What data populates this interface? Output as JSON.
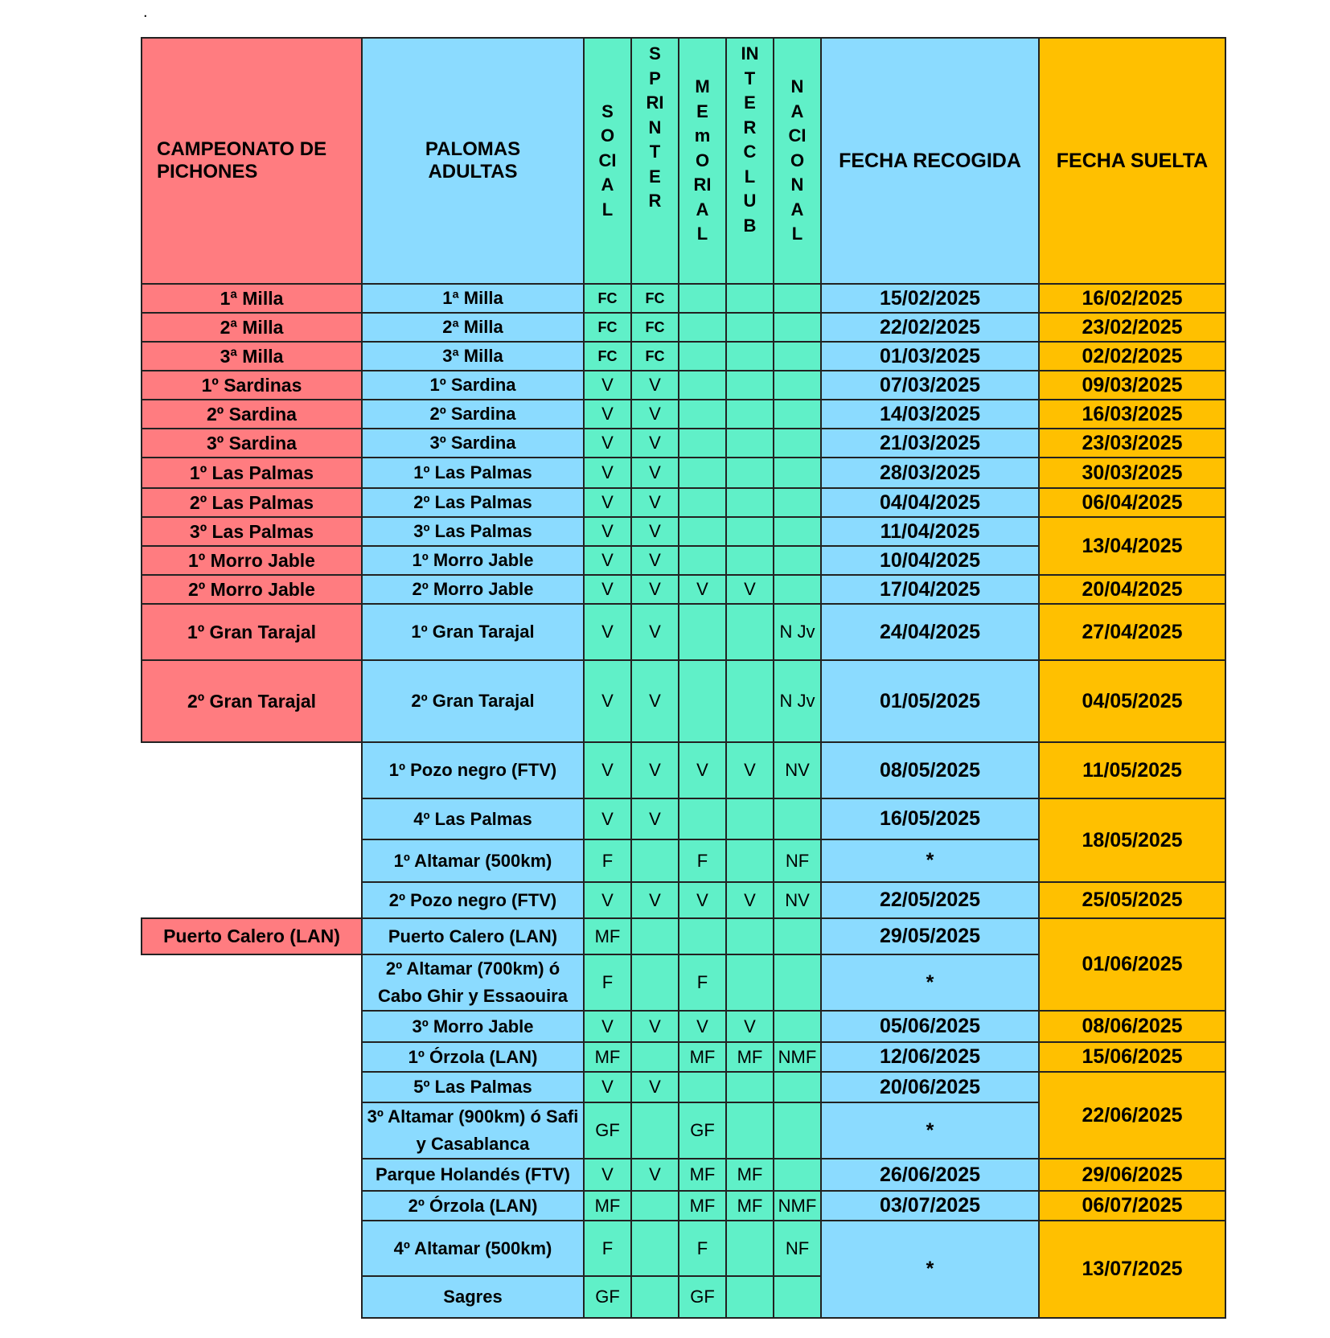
{
  "note": ".",
  "headers": {
    "pichones": "CAMPEONATO DE PICHONES",
    "adultas": "PALOMAS ADULTAS",
    "social": "SOCIAL",
    "sprinter": "SPRINTER",
    "memorial": "MEmORIAL",
    "interclub": "INTERCLUB",
    "nacional": "NACIONAL",
    "recogida": "FECHA RECOGIDA",
    "suelta": "FECHA SUELTA"
  },
  "colors": {
    "pichones": "#FF7C80",
    "adultas": "#8BDBFF",
    "categories": "#60F0C8",
    "suelta": "#FFC000"
  },
  "rows": [
    {
      "pichones": "1ª Milla",
      "adultas": "1ª Milla",
      "social": "FC",
      "sprinter": "FC",
      "memorial": "",
      "interclub": "",
      "nacional": "",
      "recogida": "15/02/2025",
      "suelta": "16/02/2025"
    },
    {
      "pichones": "2ª Milla",
      "adultas": "2ª Milla",
      "social": "FC",
      "sprinter": "FC",
      "memorial": "",
      "interclub": "",
      "nacional": "",
      "recogida": "22/02/2025",
      "suelta": "23/02/2025"
    },
    {
      "pichones": "3ª Milla",
      "adultas": "3ª Milla",
      "social": "FC",
      "sprinter": "FC",
      "memorial": "",
      "interclub": "",
      "nacional": "",
      "recogida": "01/03/2025",
      "suelta": "02/02/2025"
    },
    {
      "pichones": "1º Sardinas",
      "adultas": "1º Sardina",
      "social": "V",
      "sprinter": "V",
      "memorial": "",
      "interclub": "",
      "nacional": "",
      "recogida": "07/03/2025",
      "suelta": "09/03/2025"
    },
    {
      "pichones": "2º Sardina",
      "adultas": "2º Sardina",
      "social": "V",
      "sprinter": "V",
      "memorial": "",
      "interclub": "",
      "nacional": "",
      "recogida": "14/03/2025",
      "suelta": "16/03/2025"
    },
    {
      "pichones": "3º Sardina",
      "adultas": "3º Sardina",
      "social": "V",
      "sprinter": "V",
      "memorial": "",
      "interclub": "",
      "nacional": "",
      "recogida": "21/03/2025",
      "suelta": "23/03/2025"
    },
    {
      "pichones": "1º Las Palmas",
      "adultas": "1º Las Palmas",
      "social": "V",
      "sprinter": "V",
      "memorial": "",
      "interclub": "",
      "nacional": "",
      "recogida": "28/03/2025",
      "suelta": "30/03/2025"
    },
    {
      "pichones": "2º Las Palmas",
      "adultas": "2º Las Palmas",
      "social": "V",
      "sprinter": "V",
      "memorial": "",
      "interclub": "",
      "nacional": "",
      "recogida": "04/04/2025",
      "suelta": "06/04/2025"
    },
    {
      "pichones": "3º Las Palmas",
      "adultas": "3º Las Palmas",
      "social": "V",
      "sprinter": "V",
      "memorial": "",
      "interclub": "",
      "nacional": "",
      "recogida": "11/04/2025",
      "suelta": "13/04/2025"
    },
    {
      "pichones": "1º Morro Jable",
      "adultas": "1º Morro Jable",
      "social": "V",
      "sprinter": "V",
      "memorial": "",
      "interclub": "",
      "nacional": "",
      "recogida": "10/04/2025",
      "suelta": ""
    },
    {
      "pichones": "2º Morro Jable",
      "adultas": "2º Morro Jable",
      "social": "V",
      "sprinter": "V",
      "memorial": "V",
      "interclub": "V",
      "nacional": "",
      "recogida": "17/04/2025",
      "suelta": "20/04/2025"
    },
    {
      "pichones": "1º Gran Tarajal",
      "adultas": "1º Gran Tarajal",
      "social": "V",
      "sprinter": "V",
      "memorial": "",
      "interclub": "",
      "nacional": "N Jv",
      "recogida": "24/04/2025",
      "suelta": "27/04/2025"
    },
    {
      "pichones": "2º Gran Tarajal",
      "adultas": "2º Gran Tarajal",
      "social": "V",
      "sprinter": "V",
      "memorial": "",
      "interclub": "",
      "nacional": "N Jv",
      "recogida": "01/05/2025",
      "suelta": "04/05/2025"
    },
    {
      "pichones": "",
      "adultas": "1º Pozo negro (FTV)",
      "social": "V",
      "sprinter": "V",
      "memorial": "V",
      "interclub": "V",
      "nacional": "NV",
      "recogida": "08/05/2025",
      "suelta": "11/05/2025"
    },
    {
      "pichones": "",
      "adultas": "4º Las Palmas",
      "social": "V",
      "sprinter": "V",
      "memorial": "",
      "interclub": "",
      "nacional": "",
      "recogida": "16/05/2025",
      "suelta": "18/05/2025"
    },
    {
      "pichones": "",
      "adultas": "1º Altamar (500km)",
      "social": "F",
      "sprinter": "",
      "memorial": "F",
      "interclub": "",
      "nacional": "NF",
      "recogida": "*",
      "suelta": ""
    },
    {
      "pichones": "",
      "adultas": "2º Pozo negro (FTV)",
      "social": "V",
      "sprinter": "V",
      "memorial": "V",
      "interclub": "V",
      "nacional": "NV",
      "recogida": "22/05/2025",
      "suelta": "25/05/2025"
    },
    {
      "pichones": "Puerto Calero (LAN)",
      "adultas": "Puerto Calero (LAN)",
      "social": "MF",
      "sprinter": "",
      "memorial": "",
      "interclub": "",
      "nacional": "",
      "recogida": "29/05/2025",
      "suelta": "01/06/2025"
    },
    {
      "pichones": "",
      "adultas": "2º Altamar (700km) ó Cabo Ghir y Essaouira",
      "social": "F",
      "sprinter": "",
      "memorial": "F",
      "interclub": "",
      "nacional": "",
      "recogida": "*",
      "suelta": ""
    },
    {
      "pichones": "",
      "adultas": "3º Morro Jable",
      "social": "V",
      "sprinter": "V",
      "memorial": "V",
      "interclub": "V",
      "nacional": "",
      "recogida": "05/06/2025",
      "suelta": "08/06/2025"
    },
    {
      "pichones": "",
      "adultas": "1º Órzola (LAN)",
      "social": "MF",
      "sprinter": "",
      "memorial": "MF",
      "interclub": "MF",
      "nacional": "NMF",
      "recogida": "12/06/2025",
      "suelta": "15/06/2025"
    },
    {
      "pichones": "",
      "adultas": "5º Las Palmas",
      "social": "V",
      "sprinter": "V",
      "memorial": "",
      "interclub": "",
      "nacional": "",
      "recogida": "20/06/2025",
      "suelta": "22/06/2025"
    },
    {
      "pichones": "",
      "adultas": "3º Altamar (900km) ó Safi y Casablanca",
      "social": "GF",
      "sprinter": "",
      "memorial": "GF",
      "interclub": "",
      "nacional": "",
      "recogida": "*",
      "suelta": ""
    },
    {
      "pichones": "",
      "adultas": "Parque Holandés (FTV)",
      "social": "V",
      "sprinter": "V",
      "memorial": "MF",
      "interclub": "MF",
      "nacional": "",
      "recogida": "26/06/2025",
      "suelta": "29/06/2025"
    },
    {
      "pichones": "",
      "adultas": "2º Órzola (LAN)",
      "social": "MF",
      "sprinter": "",
      "memorial": "MF",
      "interclub": "MF",
      "nacional": "NMF",
      "recogida": "03/07/2025",
      "suelta": "06/07/2025"
    },
    {
      "pichones": "",
      "adultas": "4º Altamar (500km)",
      "social": "F",
      "sprinter": "",
      "memorial": "F",
      "interclub": "",
      "nacional": "NF",
      "recogida": "*",
      "suelta": "13/07/2025"
    },
    {
      "pichones": "",
      "adultas": "Sagres",
      "social": "GF",
      "sprinter": "",
      "memorial": "GF",
      "interclub": "",
      "nacional": "",
      "recogida": "",
      "suelta": ""
    }
  ]
}
